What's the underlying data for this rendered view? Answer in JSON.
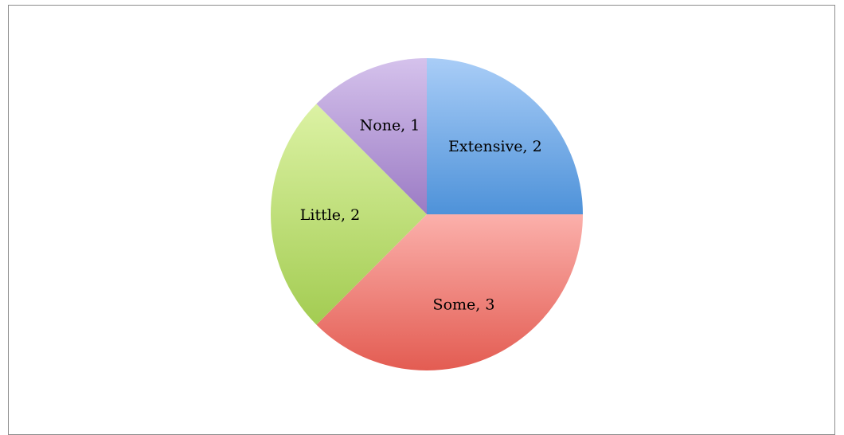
{
  "chart_data": {
    "type": "pie",
    "slices": [
      {
        "label": "Extensive",
        "value": 2,
        "display": "Extensive, 2",
        "color_top": "#a9cdf7",
        "color_bottom": "#4e92d9"
      },
      {
        "label": "Some",
        "value": 3,
        "display": "Some, 3",
        "color_top": "#fbb0ab",
        "color_bottom": "#e35c52"
      },
      {
        "label": "Little",
        "value": 2,
        "display": "Little, 2",
        "color_top": "#dcf2a4",
        "color_bottom": "#a3cc52"
      },
      {
        "label": "None",
        "value": 1,
        "display": "None, 1",
        "color_top": "#d5c2ec",
        "color_bottom": "#9b7bc4"
      }
    ],
    "start_angle_deg": -90,
    "direction": "clockwise",
    "legend": "none",
    "data_labels": "inside"
  }
}
